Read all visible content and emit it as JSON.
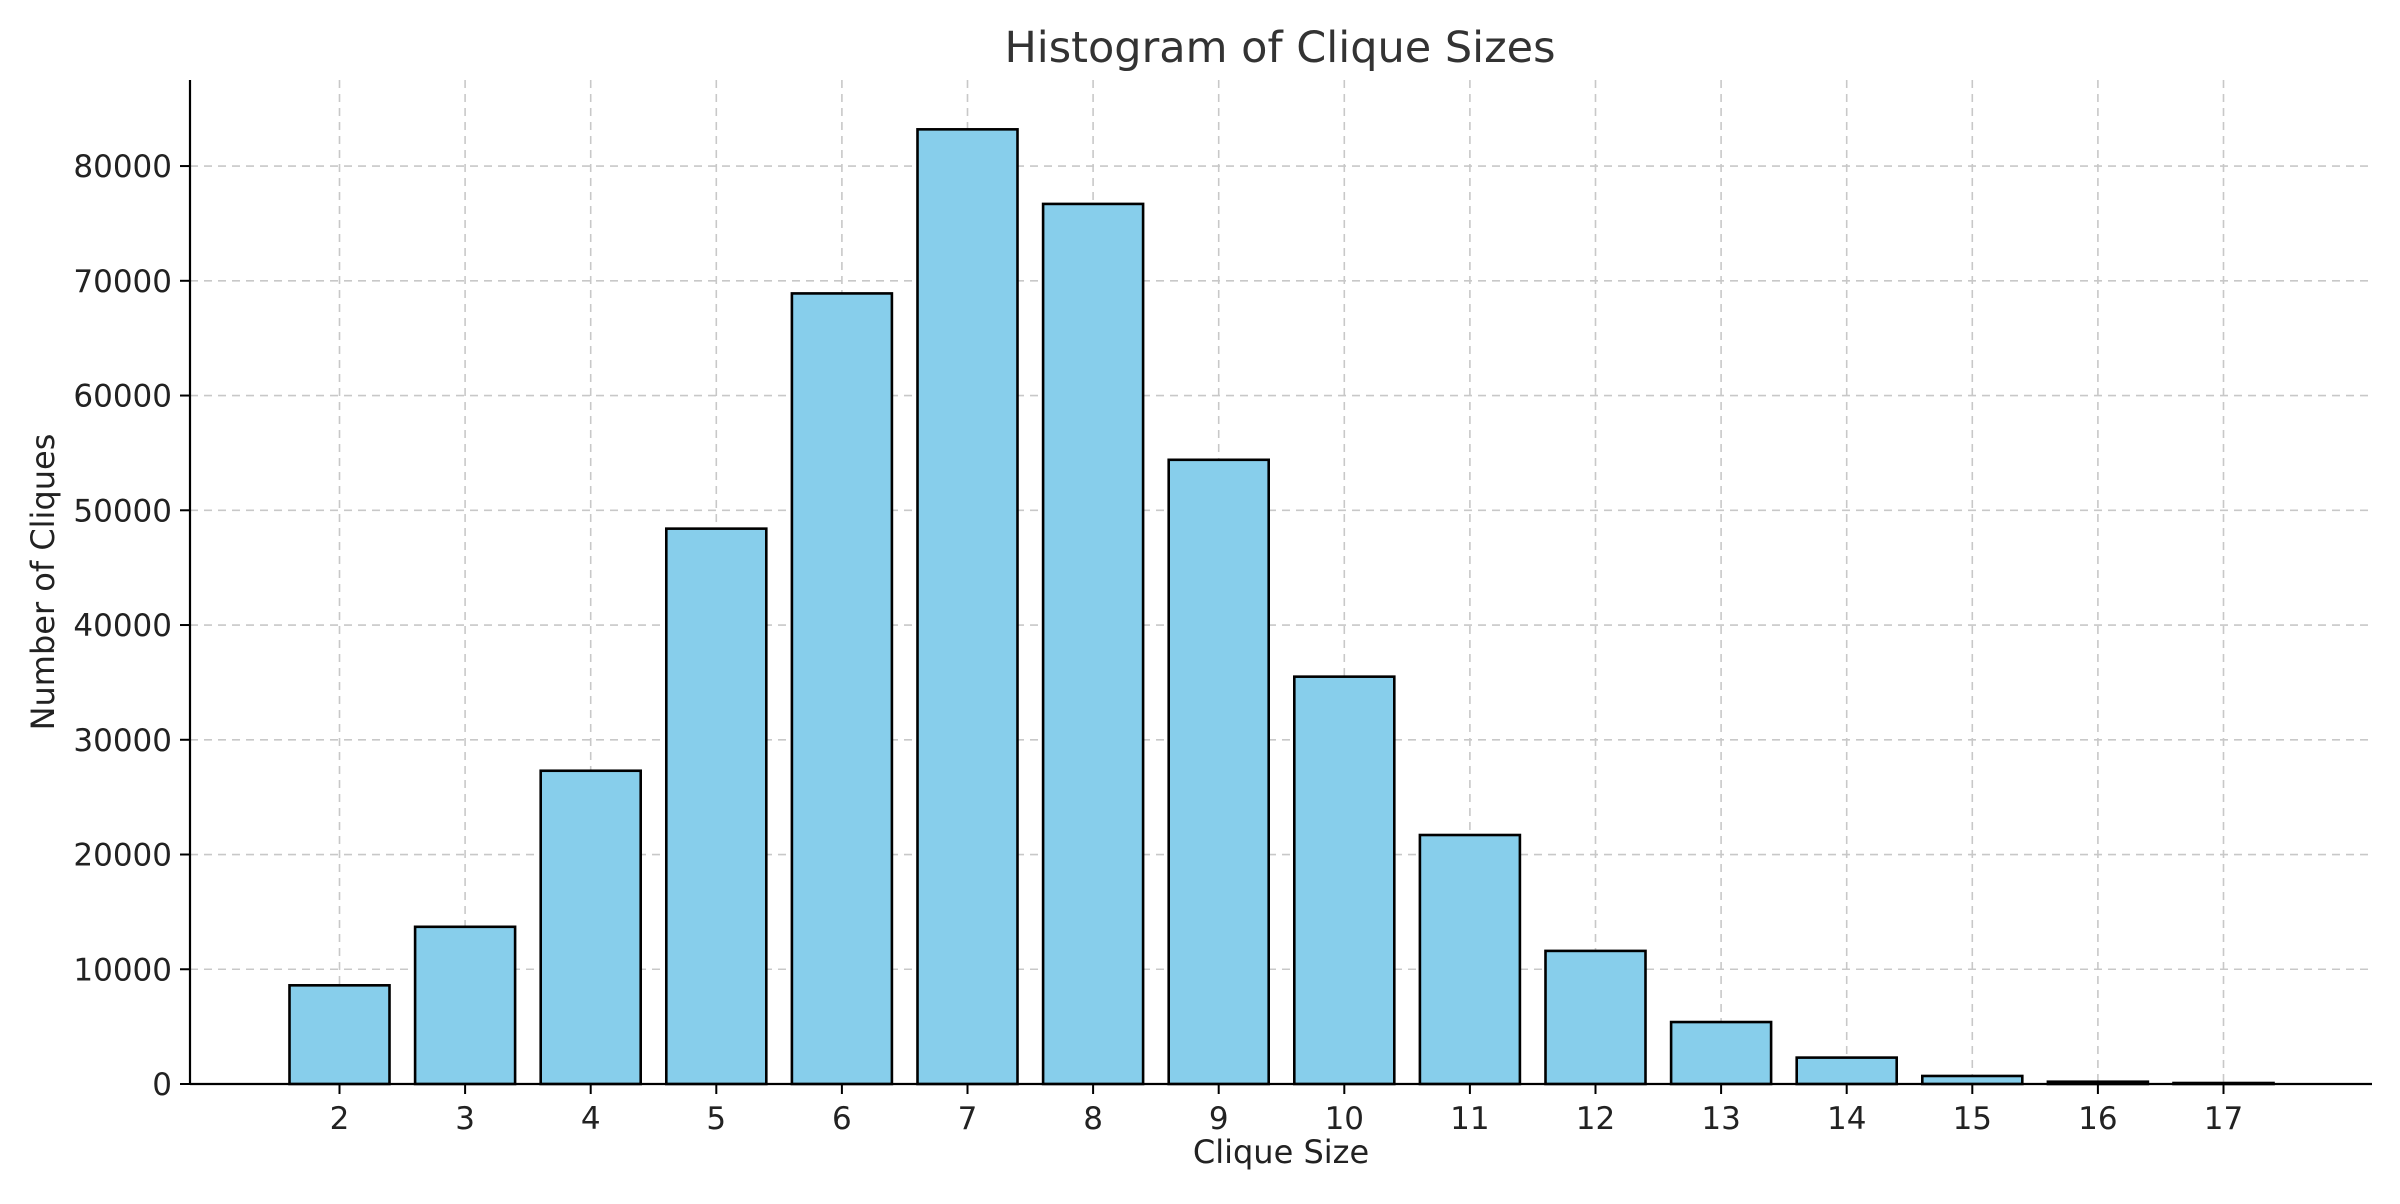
{
  "chart_data": {
    "type": "bar",
    "title": "Histogram of Clique Sizes",
    "xlabel": "Clique Size",
    "ylabel": "Number of Cliques",
    "categories": [
      "2",
      "3",
      "4",
      "5",
      "6",
      "7",
      "8",
      "9",
      "10",
      "11",
      "12",
      "13",
      "14",
      "15",
      "16",
      "17"
    ],
    "values": [
      8600,
      13700,
      27300,
      48400,
      68900,
      83200,
      76700,
      54400,
      35500,
      21700,
      11600,
      5400,
      2300,
      700,
      200,
      40
    ],
    "ylim": [
      0,
      87500
    ],
    "yticks": [
      0,
      10000,
      20000,
      30000,
      40000,
      50000,
      60000,
      70000,
      80000
    ],
    "grid": true,
    "colors": {
      "bar_fill": "#87ceeb",
      "bar_edge": "#000000"
    }
  }
}
